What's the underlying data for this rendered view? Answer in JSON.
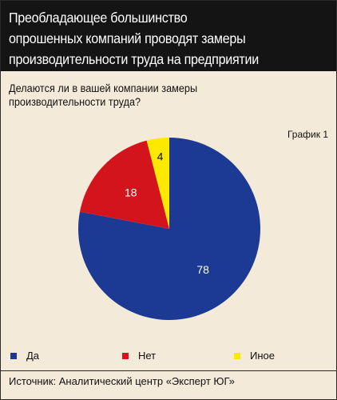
{
  "header": {
    "lines": [
      "Преобладающее большинство",
      "опрошенных компаний проводят замеры",
      "производительности труда на предприятии"
    ]
  },
  "question": {
    "lines": [
      "Делаются ли в вашей компании замеры",
      "производительности труда?"
    ]
  },
  "graph_label": "График 1",
  "source": "Источник: Аналитический центр «Эксперт ЮГ»",
  "chart_data": {
    "type": "pie",
    "title": "",
    "slices": [
      {
        "label": "Да",
        "value": 78,
        "color": "#1c3a94"
      },
      {
        "label": "Нет",
        "value": 18,
        "color": "#d4141c"
      },
      {
        "label": "Иное",
        "value": 4,
        "color": "#fde800"
      }
    ],
    "legend": "bottom"
  }
}
